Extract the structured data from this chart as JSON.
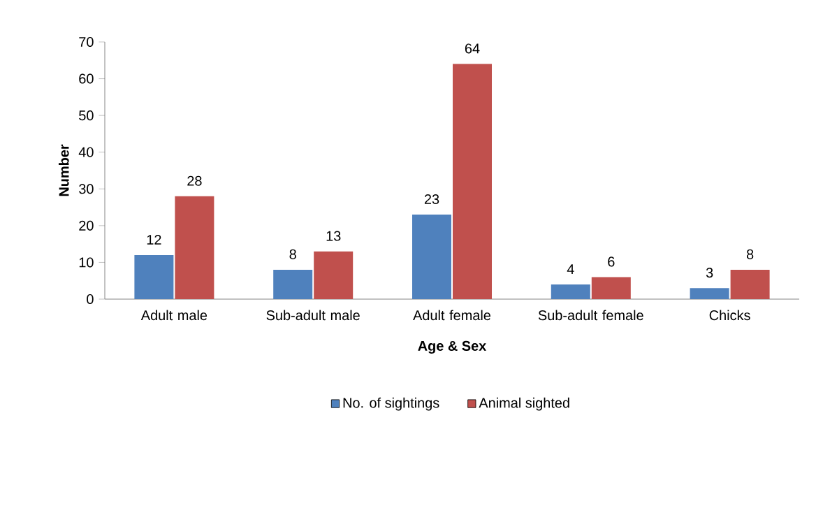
{
  "chart_data": {
    "type": "bar",
    "xlabel": "Age & Sex",
    "ylabel": "Number",
    "categories": [
      "Adult male",
      "Sub-adult male",
      "Adult female",
      "Sub-adult female",
      "Chicks"
    ],
    "series": [
      {
        "name": "No. of sightings",
        "color": "#4f81bd",
        "values": [
          12,
          8,
          23,
          4,
          3
        ]
      },
      {
        "name": "Animal sighted",
        "color": "#c0504d",
        "values": [
          28,
          13,
          64,
          6,
          8
        ]
      }
    ],
    "ylim": [
      0,
      70
    ],
    "yticks": [
      0,
      10,
      20,
      30,
      40,
      50,
      60,
      70
    ],
    "data_labels": true,
    "grid": false,
    "legend": "bottom"
  }
}
